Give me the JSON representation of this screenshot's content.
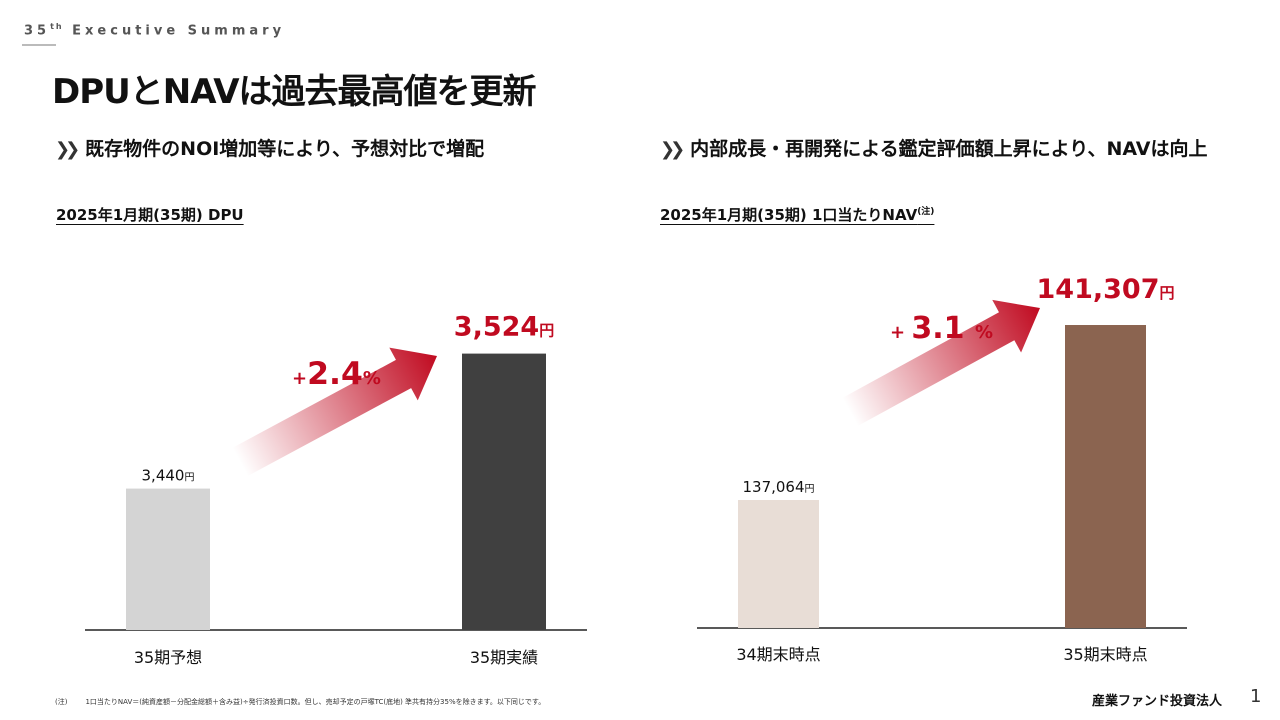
{
  "header": {
    "eyebrow": "35",
    "eyebrow_sup": "th",
    "eyebrow_rest": " Executive Summary",
    "title": "DPUとNAVは過去最高値を更新"
  },
  "left": {
    "subtitle": "既存物件のNOI増加等により、予想対比で増配",
    "chevron_icon": "double-chevron-right-icon"
  },
  "right": {
    "subtitle": "内部成長・再開発による鑑定評価額上昇により、NAVは向上",
    "chevron_icon": "double-chevron-right-icon"
  },
  "chart_data": [
    {
      "type": "bar",
      "title": "2025年1月期(35期) DPU",
      "categories": [
        "35期予想",
        "35期実績"
      ],
      "values": [
        3440,
        3524
      ],
      "value_labels": [
        "3,440",
        "3,524"
      ],
      "unit": "円",
      "colors": [
        "#d4d4d4",
        "#404040"
      ],
      "change_label": {
        "sign": "+",
        "value": "2.4",
        "unit": "%"
      },
      "accent": "#c00a20"
    },
    {
      "type": "bar",
      "title": "2025年1月期(35期) 1口当たりNAV",
      "title_note": "(注)",
      "categories": [
        "34期末時点",
        "35期末時点"
      ],
      "values": [
        137064,
        141307
      ],
      "value_labels": [
        "137,064",
        "141,307"
      ],
      "unit": "円",
      "colors": [
        "#e8ddd6",
        "#8b6450"
      ],
      "change_label": {
        "sign": "+",
        "value": "3.1",
        "unit": "%"
      },
      "accent": "#c00a20"
    }
  ],
  "footer": {
    "note_mark": "(注)",
    "note": "1口当たりNAV＝(純資産額－分配金総額＋含み益)÷発行済投資口数。但し、売却予定の戸塚TC(底地) 準共有持分35%を除きます。以下同じです。",
    "brand": "産業ファンド投資法人",
    "page": "1"
  }
}
